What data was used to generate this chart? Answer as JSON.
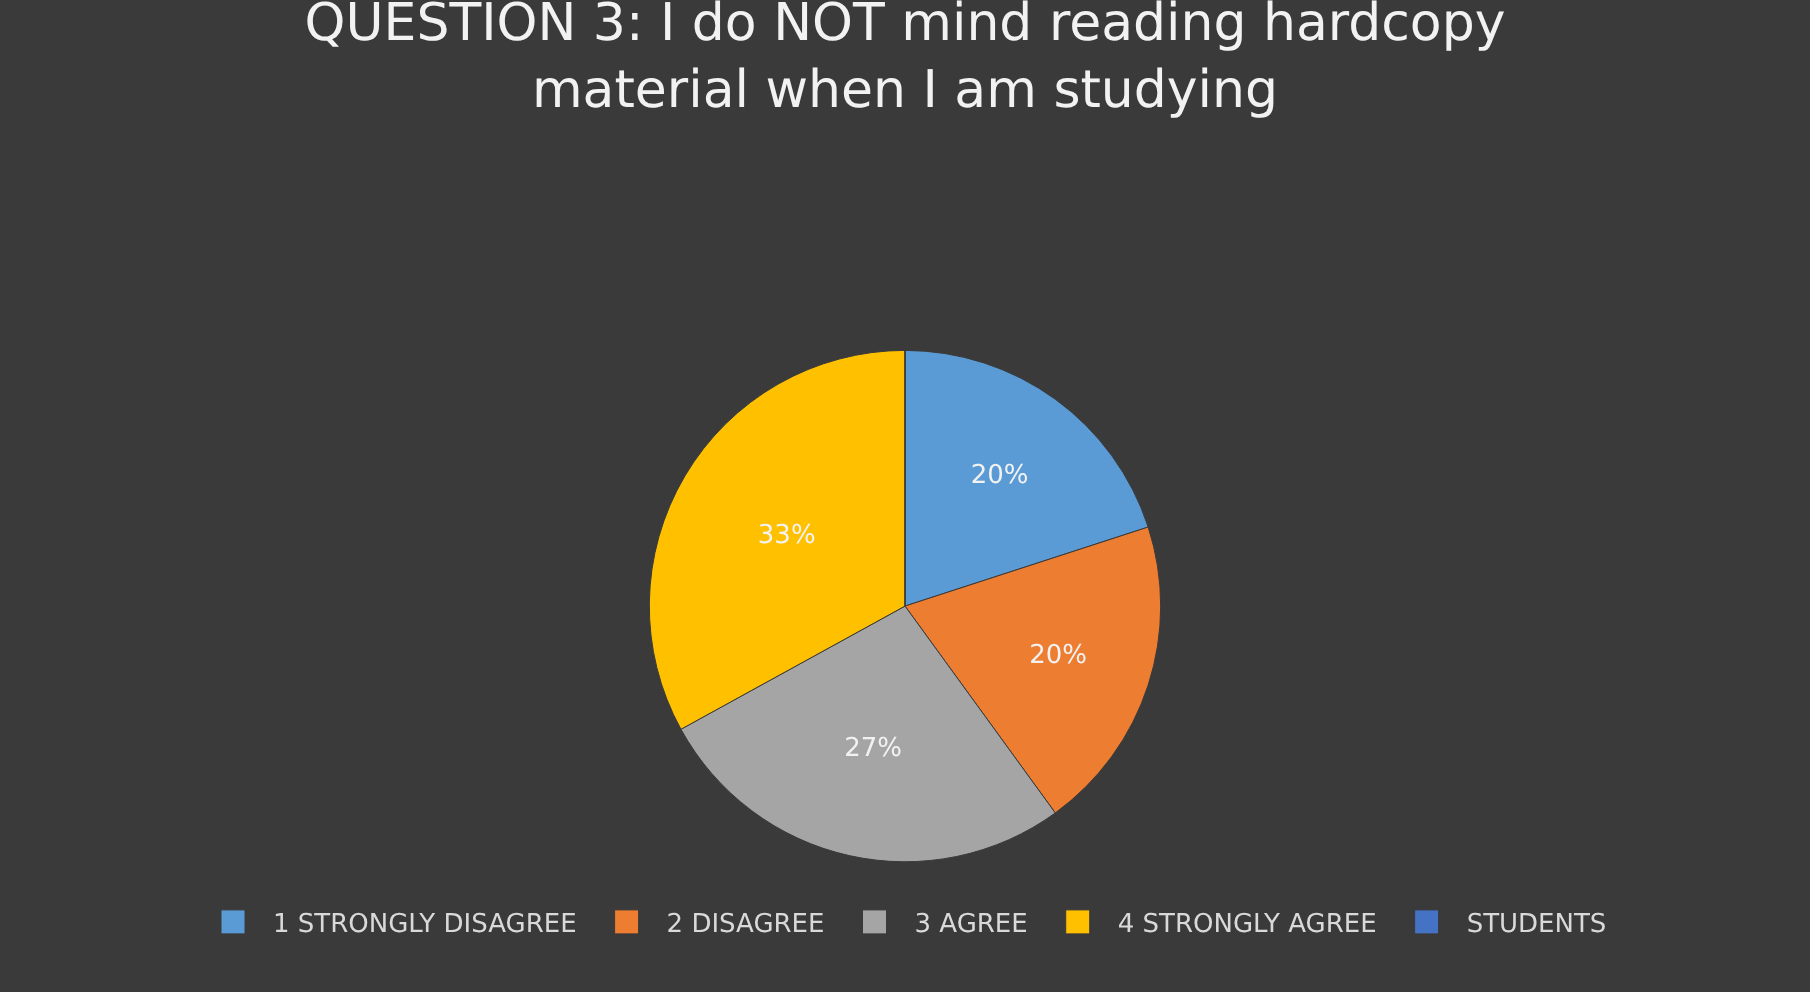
{
  "chart_data": {
    "type": "pie",
    "title": "QUESTION 3: I do NOT mind reading hardcopy material when I am studying",
    "categories": [
      "1 STRONGLY DISAGREE",
      "2 DISAGREE",
      "3 AGREE",
      "4 STRONGLY AGREE",
      "STUDENTS"
    ],
    "values": [
      20,
      20,
      27,
      33,
      0
    ],
    "value_labels": [
      "20%",
      "20%",
      "27%",
      "33%",
      null
    ],
    "colors": [
      "#5b9bd5",
      "#ed7d31",
      "#a5a5a5",
      "#ffc000",
      "#4472c4"
    ],
    "legend": "bottom"
  }
}
